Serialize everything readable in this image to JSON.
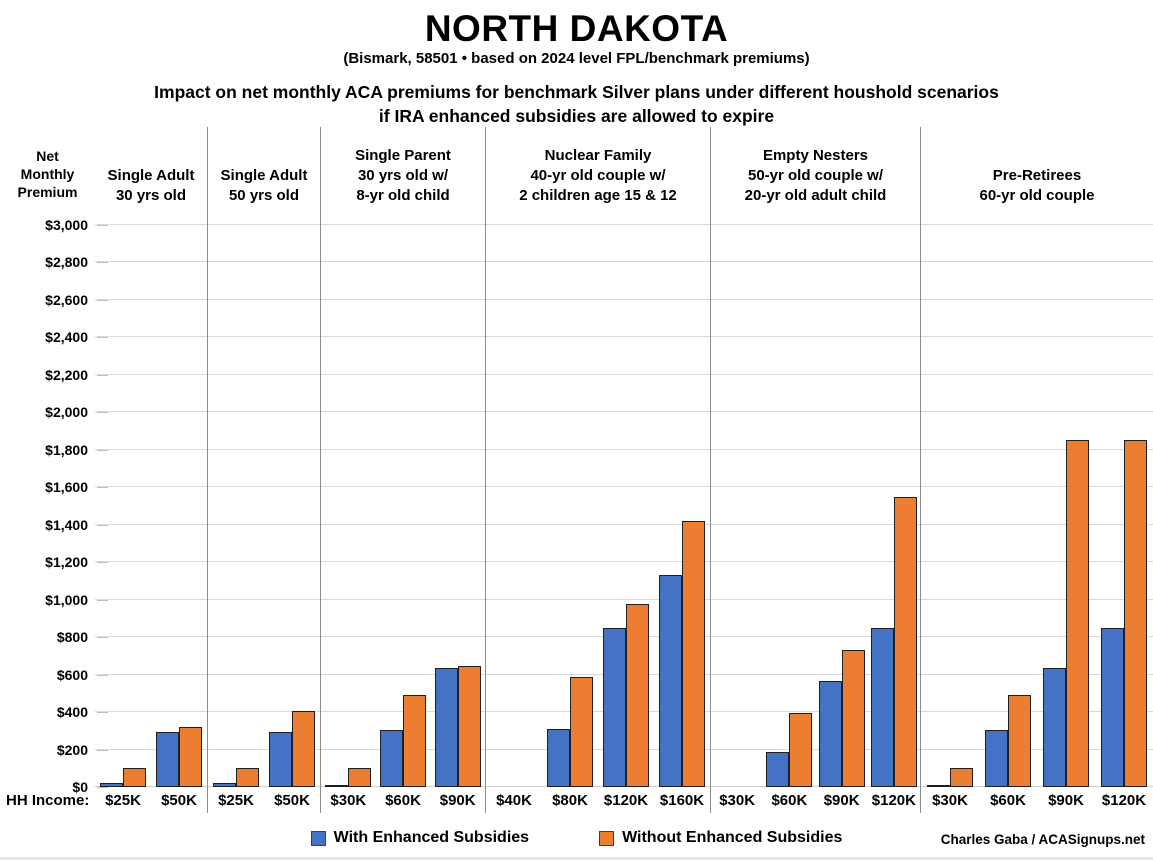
{
  "title": "NORTH DAKOTA",
  "subtitle": "(Bismark, 58501 • based on 2024 level FPL/benchmark premiums)",
  "heading": "Impact on net monthly ACA premiums for benchmark Silver plans under different houshold scenarios\nif IRA enhanced subsidies are allowed to expire",
  "y_axis_title": "Net\nMonthly\nPremium",
  "hh_income_label": "HH Income:",
  "legend": {
    "with": {
      "label": "With Enhanced Subsidies",
      "color": "#4472C4"
    },
    "without": {
      "label": "Without Enhanced Subsidies",
      "color": "#ED7D31"
    }
  },
  "attribution": "Charles Gaba / ACASignups.net",
  "chart_data": {
    "type": "bar",
    "title": "Impact on net monthly ACA premiums for benchmark Silver plans under different houshold scenarios if IRA enhanced subsidies are allowed to expire",
    "ylabel": "Net Monthly Premium",
    "ylim": [
      0,
      3000
    ],
    "ytick_step": 200,
    "ytick_format": "$#,###",
    "grid": "horizontal",
    "legend_position": "bottom",
    "series_names": [
      "With Enhanced Subsidies",
      "Without Enhanced Subsidies"
    ],
    "colors": {
      "with_enhanced": "#4472C4",
      "without_enhanced": "#ED7D31"
    },
    "groups": [
      {
        "label": "Single Adult\n30 yrs old",
        "categories": [
          "$25K",
          "$50K"
        ],
        "with_enhanced": [
          20,
          295
        ],
        "without_enhanced": [
          100,
          320
        ]
      },
      {
        "label": "Single Adult\n50 yrs old",
        "categories": [
          "$25K",
          "$50K"
        ],
        "with_enhanced": [
          20,
          295
        ],
        "without_enhanced": [
          100,
          405
        ]
      },
      {
        "label": "Single Parent\n30 yrs old w/\n8-yr old child",
        "categories": [
          "$30K",
          "$60K",
          "$90K"
        ],
        "with_enhanced": [
          5,
          305,
          635
        ],
        "without_enhanced": [
          100,
          490,
          645
        ]
      },
      {
        "label": "Nuclear Family\n40-yr old couple w/\n2 children age 15 & 12",
        "categories": [
          "$40K",
          "$80K",
          "$120K",
          "$160K"
        ],
        "with_enhanced": [
          0,
          310,
          850,
          1130
        ],
        "without_enhanced": [
          0,
          585,
          975,
          1420
        ]
      },
      {
        "label": "Empty Nesters\n50-yr old couple w/\n20-yr old adult child",
        "categories": [
          "$30K",
          "$60K",
          "$90K",
          "$120K"
        ],
        "with_enhanced": [
          0,
          185,
          565,
          850
        ],
        "without_enhanced": [
          0,
          395,
          730,
          1545
        ]
      },
      {
        "label": "Pre-Retirees\n60-yr old couple",
        "categories": [
          "$30K",
          "$60K",
          "$90K",
          "$120K"
        ],
        "with_enhanced": [
          5,
          305,
          635,
          850
        ],
        "without_enhanced": [
          100,
          490,
          1850,
          1850
        ]
      }
    ]
  }
}
